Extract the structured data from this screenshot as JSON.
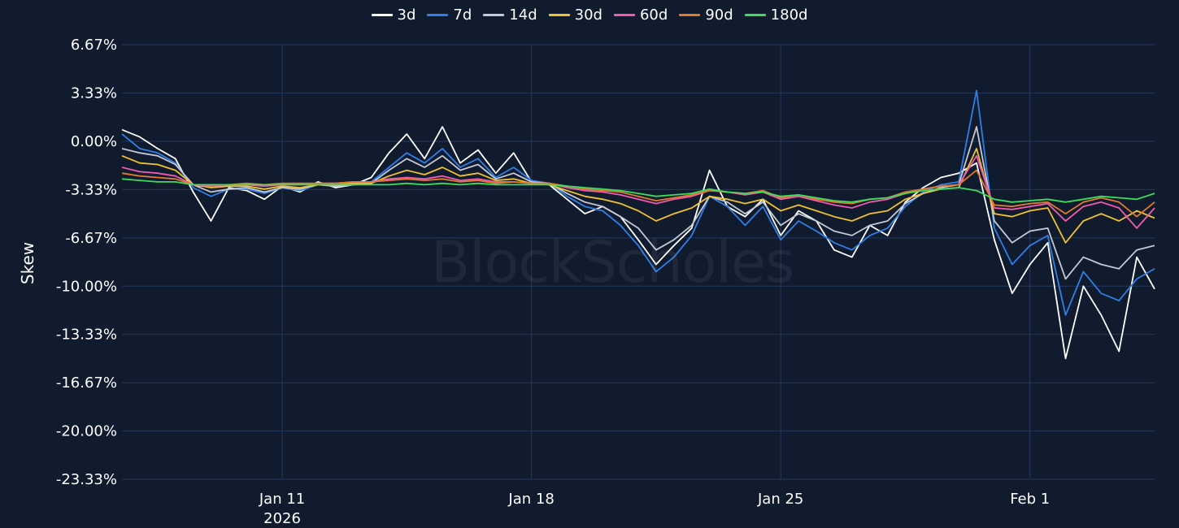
{
  "watermark": "BlockScholes",
  "chart_data": {
    "type": "line",
    "title": "",
    "xlabel": "",
    "ylabel": "Skew",
    "y_unit": "%",
    "ylim": [
      -23.33,
      6.67
    ],
    "y_ticks": [
      6.67,
      3.33,
      0.0,
      -3.33,
      -6.67,
      -10.0,
      -13.33,
      -16.67,
      -20.0,
      -23.33
    ],
    "y_tick_labels": [
      "6.67%",
      "3.33%",
      "0.00%",
      "-3.33%",
      "-6.67%",
      "-10.00%",
      "-13.33%",
      "-16.67%",
      "-20.00%",
      "-23.33%"
    ],
    "x_range": [
      "2026-01-06T12:00",
      "2026-02-04T12:00"
    ],
    "x_ticks": [
      {
        "date": "2026-01-11",
        "label": "Jan 11",
        "sublabel": "2026"
      },
      {
        "date": "2026-01-18",
        "label": "Jan 18",
        "sublabel": ""
      },
      {
        "date": "2026-01-25",
        "label": "Jan 25",
        "sublabel": ""
      },
      {
        "date": "2026-02-01",
        "label": "Feb 1",
        "sublabel": ""
      }
    ],
    "grid": true,
    "legend_position": "top-center",
    "x": [
      "2026-01-06T12:00",
      "2026-01-07T00:00",
      "2026-01-07T12:00",
      "2026-01-08T00:00",
      "2026-01-08T12:00",
      "2026-01-09T00:00",
      "2026-01-09T12:00",
      "2026-01-10T00:00",
      "2026-01-10T12:00",
      "2026-01-11T00:00",
      "2026-01-11T12:00",
      "2026-01-12T00:00",
      "2026-01-12T12:00",
      "2026-01-13T00:00",
      "2026-01-13T12:00",
      "2026-01-14T00:00",
      "2026-01-14T12:00",
      "2026-01-15T00:00",
      "2026-01-15T12:00",
      "2026-01-16T00:00",
      "2026-01-16T12:00",
      "2026-01-17T00:00",
      "2026-01-17T12:00",
      "2026-01-18T00:00",
      "2026-01-18T12:00",
      "2026-01-19T00:00",
      "2026-01-19T12:00",
      "2026-01-20T00:00",
      "2026-01-20T12:00",
      "2026-01-21T00:00",
      "2026-01-21T12:00",
      "2026-01-22T00:00",
      "2026-01-22T12:00",
      "2026-01-23T00:00",
      "2026-01-23T12:00",
      "2026-01-24T00:00",
      "2026-01-24T12:00",
      "2026-01-25T00:00",
      "2026-01-25T12:00",
      "2026-01-26T00:00",
      "2026-01-26T12:00",
      "2026-01-27T00:00",
      "2026-01-27T12:00",
      "2026-01-28T00:00",
      "2026-01-28T12:00",
      "2026-01-29T00:00",
      "2026-01-29T12:00",
      "2026-01-30T00:00",
      "2026-01-30T12:00",
      "2026-01-31T00:00",
      "2026-01-31T12:00",
      "2026-02-01T00:00",
      "2026-02-01T12:00",
      "2026-02-02T00:00",
      "2026-02-02T12:00",
      "2026-02-03T00:00",
      "2026-02-03T12:00",
      "2026-02-04T00:00",
      "2026-02-04T12:00"
    ],
    "series": [
      {
        "name": "3d",
        "color": "#ffffff",
        "values": [
          0.8,
          0.3,
          -0.5,
          -1.2,
          -3.5,
          -5.5,
          -3.2,
          -3.4,
          -4.0,
          -3.1,
          -3.5,
          -2.8,
          -3.2,
          -3.0,
          -2.5,
          -0.8,
          0.5,
          -1.2,
          1.0,
          -1.5,
          -0.6,
          -2.2,
          -0.8,
          -2.8,
          -3.0,
          -4.0,
          -5.0,
          -4.5,
          -5.2,
          -6.8,
          -8.5,
          -7.2,
          -6.0,
          -2.0,
          -4.5,
          -5.2,
          -4.0,
          -6.5,
          -4.8,
          -5.5,
          -7.5,
          -8.0,
          -5.8,
          -6.5,
          -4.2,
          -3.2,
          -2.5,
          -2.2,
          -1.5,
          -6.8,
          -10.5,
          -8.5,
          -7.0,
          -15.0,
          -10.0,
          -12.0,
          -14.5,
          -8.0,
          -10.2
        ]
      },
      {
        "name": "7d",
        "color": "#2f7fe8",
        "values": [
          0.5,
          -0.5,
          -0.8,
          -1.5,
          -3.2,
          -3.8,
          -3.3,
          -3.3,
          -3.6,
          -3.2,
          -3.4,
          -3.0,
          -3.1,
          -3.0,
          -2.8,
          -1.8,
          -0.8,
          -1.5,
          -0.5,
          -1.8,
          -1.2,
          -2.5,
          -1.8,
          -2.7,
          -2.9,
          -3.8,
          -4.5,
          -4.8,
          -5.8,
          -7.2,
          -9.0,
          -8.0,
          -6.5,
          -3.8,
          -4.5,
          -5.8,
          -4.5,
          -6.8,
          -5.5,
          -6.2,
          -7.0,
          -7.5,
          -6.5,
          -6.0,
          -4.5,
          -3.5,
          -3.0,
          -2.8,
          3.5,
          -6.0,
          -8.5,
          -7.2,
          -6.5,
          -12.0,
          -9.0,
          -10.5,
          -11.0,
          -9.5,
          -8.8
        ]
      },
      {
        "name": "14d",
        "color": "#c4c9d4",
        "values": [
          -0.5,
          -0.8,
          -1.0,
          -1.6,
          -3.0,
          -3.5,
          -3.3,
          -3.2,
          -3.5,
          -3.2,
          -3.3,
          -3.0,
          -3.1,
          -3.0,
          -2.9,
          -2.0,
          -1.2,
          -1.8,
          -1.0,
          -2.0,
          -1.6,
          -2.6,
          -2.2,
          -2.8,
          -2.9,
          -3.6,
          -4.2,
          -4.5,
          -5.2,
          -6.0,
          -7.5,
          -6.8,
          -5.8,
          -3.8,
          -4.2,
          -5.0,
          -4.2,
          -5.8,
          -5.0,
          -5.5,
          -6.2,
          -6.5,
          -5.8,
          -5.5,
          -4.3,
          -3.6,
          -3.2,
          -3.0,
          1.0,
          -5.5,
          -7.0,
          -6.2,
          -6.0,
          -9.5,
          -8.0,
          -8.5,
          -8.8,
          -7.5,
          -7.2
        ]
      },
      {
        "name": "30d",
        "color": "#f2c12e",
        "values": [
          -1.0,
          -1.5,
          -1.6,
          -2.0,
          -3.0,
          -3.2,
          -3.1,
          -3.1,
          -3.3,
          -3.1,
          -3.2,
          -3.0,
          -3.0,
          -2.9,
          -2.9,
          -2.4,
          -2.0,
          -2.3,
          -1.8,
          -2.4,
          -2.2,
          -2.7,
          -2.6,
          -2.9,
          -3.0,
          -3.4,
          -3.8,
          -4.0,
          -4.3,
          -4.8,
          -5.5,
          -5.0,
          -4.6,
          -3.8,
          -4.0,
          -4.3,
          -4.0,
          -4.8,
          -4.4,
          -4.8,
          -5.2,
          -5.5,
          -5.0,
          -4.8,
          -4.0,
          -3.6,
          -3.3,
          -3.2,
          -0.5,
          -5.0,
          -5.2,
          -4.8,
          -4.6,
          -7.0,
          -5.5,
          -5.0,
          -5.5,
          -4.8,
          -5.3
        ]
      },
      {
        "name": "60d",
        "color": "#f05ab0",
        "values": [
          -1.8,
          -2.1,
          -2.2,
          -2.4,
          -3.0,
          -3.1,
          -3.0,
          -3.0,
          -3.1,
          -3.0,
          -3.0,
          -2.9,
          -2.9,
          -2.8,
          -2.8,
          -2.6,
          -2.5,
          -2.6,
          -2.4,
          -2.7,
          -2.6,
          -2.8,
          -2.8,
          -2.9,
          -2.9,
          -3.2,
          -3.4,
          -3.5,
          -3.7,
          -4.0,
          -4.3,
          -4.0,
          -3.8,
          -3.4,
          -3.5,
          -3.7,
          -3.5,
          -4.0,
          -3.8,
          -4.1,
          -4.4,
          -4.6,
          -4.2,
          -4.0,
          -3.6,
          -3.3,
          -3.1,
          -3.0,
          -1.0,
          -4.6,
          -4.7,
          -4.5,
          -4.3,
          -5.5,
          -4.5,
          -4.2,
          -4.6,
          -6.0,
          -4.6
        ]
      },
      {
        "name": "90d",
        "color": "#e07b2c",
        "values": [
          -2.2,
          -2.4,
          -2.5,
          -2.6,
          -3.0,
          -3.0,
          -3.0,
          -2.9,
          -3.0,
          -2.9,
          -2.9,
          -2.9,
          -2.9,
          -2.8,
          -2.8,
          -2.7,
          -2.6,
          -2.7,
          -2.6,
          -2.8,
          -2.7,
          -2.9,
          -2.8,
          -2.9,
          -2.9,
          -3.1,
          -3.3,
          -3.4,
          -3.5,
          -3.8,
          -4.1,
          -3.9,
          -3.7,
          -3.4,
          -3.5,
          -3.6,
          -3.4,
          -3.9,
          -3.7,
          -4.0,
          -4.2,
          -4.3,
          -4.0,
          -3.9,
          -3.5,
          -3.3,
          -3.1,
          -3.0,
          -2.0,
          -4.4,
          -4.5,
          -4.3,
          -4.2,
          -5.0,
          -4.2,
          -3.9,
          -4.2,
          -5.2,
          -4.2
        ]
      },
      {
        "name": "180d",
        "color": "#3ddc5e",
        "values": [
          -2.6,
          -2.7,
          -2.8,
          -2.8,
          -3.0,
          -3.0,
          -3.0,
          -3.0,
          -3.0,
          -3.0,
          -3.0,
          -3.0,
          -3.0,
          -3.0,
          -3.0,
          -3.0,
          -2.9,
          -3.0,
          -2.9,
          -3.0,
          -2.9,
          -3.0,
          -3.0,
          -3.0,
          -3.0,
          -3.1,
          -3.2,
          -3.3,
          -3.4,
          -3.6,
          -3.8,
          -3.7,
          -3.6,
          -3.3,
          -3.5,
          -3.6,
          -3.5,
          -3.8,
          -3.7,
          -3.9,
          -4.1,
          -4.2,
          -4.0,
          -3.9,
          -3.6,
          -3.4,
          -3.3,
          -3.2,
          -3.4,
          -4.0,
          -4.2,
          -4.1,
          -4.0,
          -4.2,
          -4.0,
          -3.8,
          -3.9,
          -4.0,
          -3.6
        ]
      }
    ]
  }
}
